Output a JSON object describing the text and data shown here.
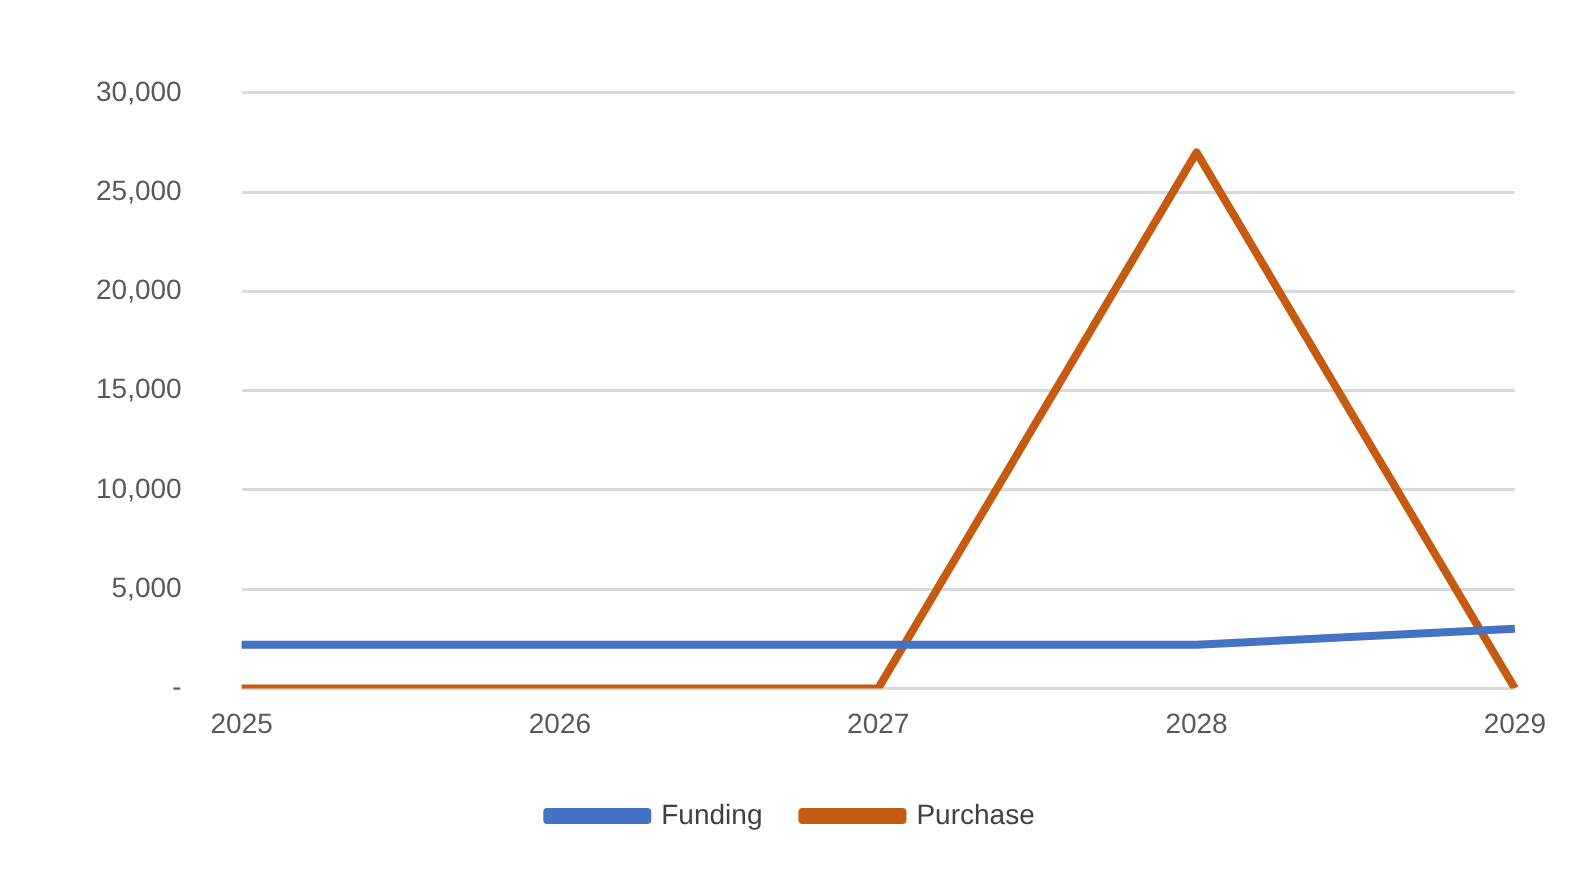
{
  "chart_data": {
    "type": "line",
    "categories": [
      "2025",
      "2026",
      "2027",
      "2028",
      "2029"
    ],
    "series": [
      {
        "name": "Funding",
        "color": "#4472c4",
        "values": [
          2200,
          2200,
          2200,
          2200,
          3000
        ]
      },
      {
        "name": "Purchase",
        "color": "#c55a11",
        "values": [
          0,
          0,
          0,
          27000,
          0
        ]
      }
    ],
    "ylim": [
      0,
      30000
    ],
    "yticks": [
      {
        "value": 0,
        "label": "-"
      },
      {
        "value": 5000,
        "label": "5,000"
      },
      {
        "value": 10000,
        "label": "10,000"
      },
      {
        "value": 15000,
        "label": "15,000"
      },
      {
        "value": 20000,
        "label": "20,000"
      },
      {
        "value": 25000,
        "label": "25,000"
      },
      {
        "value": 30000,
        "label": "30,000"
      }
    ],
    "grid": "y",
    "legend": "bottom",
    "marker": "none",
    "line_style": "solid"
  }
}
